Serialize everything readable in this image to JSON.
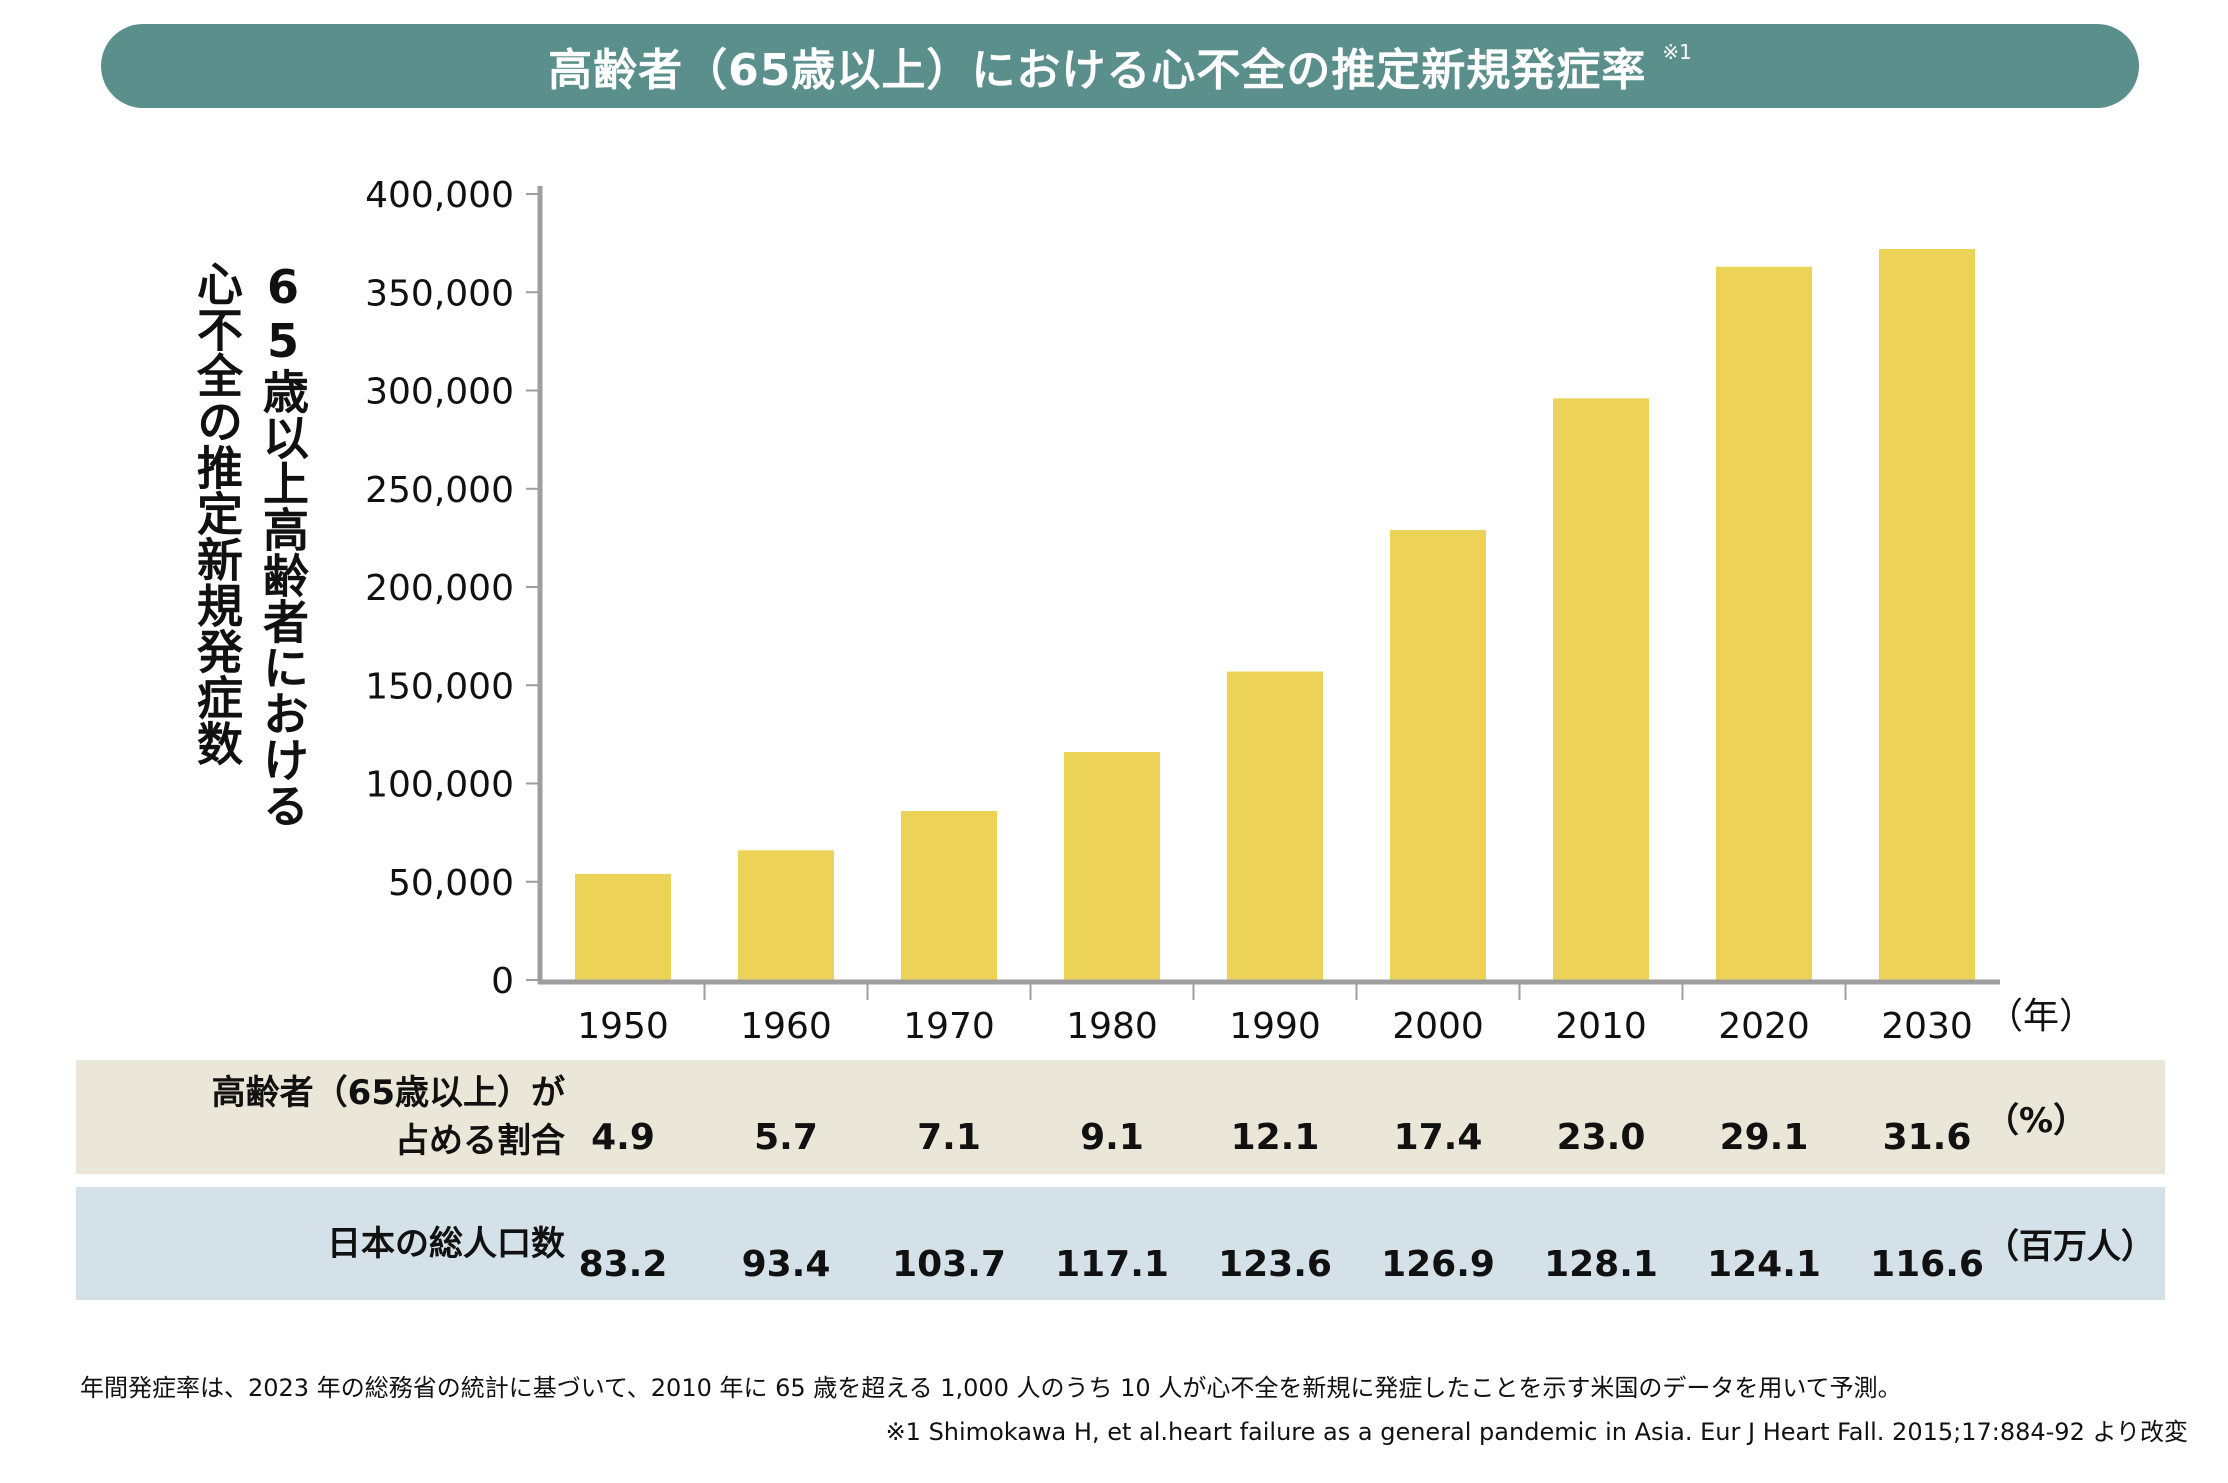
{
  "title": {
    "text": "高齢者（65歳以上）における心不全の推定新規発症率",
    "note_mark": "※1"
  },
  "chart_data": {
    "type": "bar",
    "title": "高齢者（65歳以上）における心不全の推定新規発症率",
    "ylabel": "65歳以上高齢者における心不全の推定新規発症数",
    "ylabel_col_right": "65歳以上高齢者における",
    "ylabel_col_left": "心不全の推定新規発症数",
    "xlabel": "（年）",
    "categories": [
      "1950",
      "1960",
      "1970",
      "1980",
      "1990",
      "2000",
      "2010",
      "2020",
      "2030"
    ],
    "values": [
      54000,
      66000,
      86000,
      116000,
      157000,
      229000,
      296000,
      363000,
      372000
    ],
    "ylim": [
      0,
      400000
    ],
    "yticks": [
      0,
      50000,
      100000,
      150000,
      200000,
      250000,
      300000,
      350000,
      400000
    ],
    "ytick_labels": [
      "0",
      "50,000",
      "100,000",
      "150,000",
      "200,000",
      "250,000",
      "300,000",
      "350,000",
      "400,000"
    ],
    "bar_color": "#ecd358",
    "grid": false,
    "legend": "none"
  },
  "table": {
    "rows": [
      {
        "label_line1": "高齢者（65歳以上）が",
        "label_line2": "占める割合",
        "values": [
          "4.9",
          "5.7",
          "7.1",
          "9.1",
          "12.1",
          "17.4",
          "23.0",
          "29.1",
          "31.6"
        ],
        "unit": "（%）",
        "color": "#ebe7d8"
      },
      {
        "label_line1": "日本の総人口数",
        "label_line2": "",
        "values": [
          "83.2",
          "93.4",
          "103.7",
          "117.1",
          "123.6",
          "126.9",
          "128.1",
          "124.1",
          "116.6"
        ],
        "unit": "（百万人）",
        "color": "#d5e1e9"
      }
    ]
  },
  "footnotes": {
    "line1": "年間発症率は、2023 年の総務省の統計に基づいて、2010 年に 65 歳を超える 1,000 人のうち 10 人が心不全を新規に発症したことを示す米国のデータを用いて予測。",
    "line2": "※1 Shimokawa H, et al.heart failure as a general pandemic in Asia. Eur J Heart Fall. 2015;17:884-92 より改変"
  },
  "colors": {
    "title_bg": "#5a8f8c",
    "axis": "#9e9e9e"
  }
}
